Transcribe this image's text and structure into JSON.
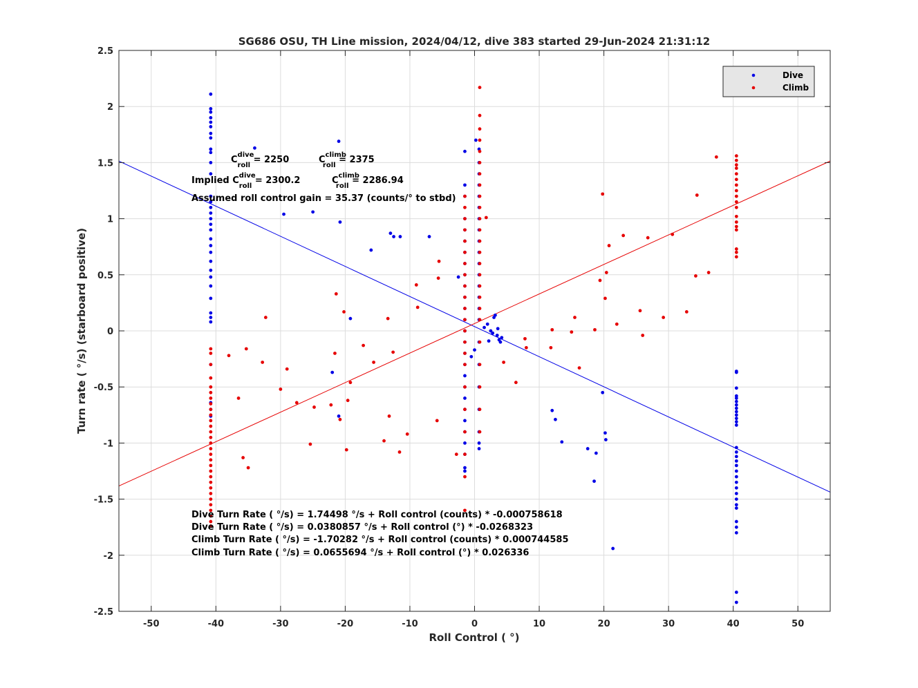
{
  "chart_data": {
    "type": "scatter",
    "title": "SG686 OSU, TH Line mission, 2024/04/12, dive 383 started 29-Jun-2024 21:31:12",
    "xlabel": "Roll Control ( °)",
    "ylabel": "Turn rate ( °/s) (starboard positive)",
    "xlim": [
      -55,
      55
    ],
    "ylim": [
      -2.5,
      2.5
    ],
    "xticks": [
      -50,
      -40,
      -30,
      -20,
      -10,
      0,
      10,
      20,
      30,
      40,
      50
    ],
    "yticks": [
      -2.5,
      -2,
      -1.5,
      -1,
      -0.5,
      0,
      0.5,
      1,
      1.5,
      2,
      2.5
    ],
    "grid": true,
    "legend_position": "top-right",
    "colors": {
      "dive": "#0000e6",
      "climb": "#e60000"
    },
    "series": [
      {
        "name": "Dive",
        "x": [
          -40.8,
          -40.8,
          -40.8,
          -40.8,
          -40.8,
          -40.8,
          -40.8,
          -40.8,
          -40.8,
          -40.8,
          -40.8,
          -40.8,
          -40.8,
          -40.8,
          -40.8,
          -40.8,
          -40.8,
          -40.8,
          -40.8,
          -40.8,
          -40.8,
          -40.8,
          -40.8,
          -40.8,
          -40.8,
          -40.8,
          -40.8,
          -40.8,
          -40.8,
          -40.8,
          -40.8,
          -40.8,
          -40.8,
          -40.8,
          -34,
          -29.5,
          -25,
          -21,
          -20.8,
          -19.2,
          -22,
          -21,
          -16,
          -13,
          -12.5,
          -11.5,
          -7,
          -2.5,
          -1.5,
          -1.5,
          -1.5,
          -1.5,
          -1.5,
          -1.5,
          -1.5,
          -1.5,
          -1.5,
          -1.5,
          -1.5,
          -1.5,
          -1.5,
          -1.5,
          -1.5,
          -1.5,
          -1.5,
          -1.5,
          -1.5,
          -1.5,
          -1.5,
          -1.5,
          -1.5,
          -1.5,
          -1.5,
          -1.5,
          -1.5,
          -0.5,
          0,
          0.2,
          0.7,
          0.7,
          0.7,
          0.7,
          0.7,
          0.7,
          0.7,
          0.7,
          0.7,
          0.7,
          0.7,
          0.7,
          0.7,
          0.7,
          0.7,
          0.7,
          0.7,
          0.7,
          0.7,
          0.7,
          0.7,
          0.7,
          0.7,
          1.5,
          2,
          2.5,
          3,
          3.2,
          3.5,
          3.8,
          4,
          4.2,
          2.8,
          2.2,
          3.6,
          12,
          12.5,
          13.5,
          17.5,
          18.8,
          18.5,
          19.8,
          20.2,
          20.3,
          21.4,
          40.5,
          40.5,
          40.5,
          40.5,
          40.5,
          40.5,
          40.5,
          40.5,
          40.5,
          40.5,
          40.5,
          40.5,
          40.5,
          40.5,
          40.5,
          40.5,
          40.5,
          40.5,
          40.5,
          40.5,
          40.5,
          40.5,
          40.5,
          40.5,
          40.5,
          40.5,
          40.5,
          40.5,
          40.5,
          40.5,
          40.5
        ],
        "y": [
          2.11,
          1.98,
          1.95,
          1.9,
          1.86,
          1.82,
          1.76,
          1.72,
          1.62,
          1.59,
          1.5,
          1.4,
          1.2,
          1.15,
          1.1,
          1.05,
          1.0,
          0.95,
          0.9,
          0.82,
          0.76,
          0.7,
          0.62,
          0.54,
          0.48,
          0.4,
          0.29,
          0.16,
          0.12,
          0.08,
          -0.3,
          -0.64,
          -0.7,
          -0.76,
          1.63,
          1.04,
          1.06,
          1.69,
          0.97,
          0.11,
          -0.37,
          -0.76,
          0.72,
          0.87,
          0.84,
          0.84,
          0.84,
          0.48,
          1.6,
          1.3,
          1.2,
          1.0,
          0.9,
          0.8,
          0.7,
          0.6,
          0.5,
          0.4,
          0.3,
          0.2,
          0.1,
          0.0,
          -0.1,
          -0.2,
          -0.3,
          -0.4,
          -0.5,
          -0.6,
          -0.7,
          -0.8,
          -0.9,
          -1.0,
          -1.1,
          -1.22,
          -1.25,
          -0.23,
          -0.17,
          1.7,
          1.62,
          1.5,
          1.4,
          1.3,
          1.2,
          1.1,
          1.0,
          0.9,
          0.8,
          0.7,
          0.6,
          0.5,
          0.4,
          0.3,
          0.2,
          0.1,
          -0.1,
          -0.3,
          -0.5,
          -0.7,
          -0.9,
          -1.0,
          -1.05,
          0.03,
          0.06,
          0.0,
          0.12,
          0.14,
          -0.04,
          -0.08,
          -0.1,
          -0.06,
          -0.02,
          -0.09,
          0.02,
          -0.71,
          -0.79,
          -0.99,
          -1.05,
          -1.09,
          -1.34,
          -0.55,
          -0.91,
          -0.97,
          -1.94,
          -0.36,
          -0.37,
          -0.51,
          -0.58,
          -0.6,
          -0.63,
          -0.66,
          -0.69,
          -0.72,
          -0.75,
          -0.78,
          -0.81,
          -0.84,
          -1.04,
          -1.08,
          -1.12,
          -1.16,
          -1.2,
          -1.25,
          -1.3,
          -1.35,
          -1.4,
          -1.45,
          -1.5,
          -1.55,
          -1.58,
          -1.7,
          -1.75,
          -1.8,
          -2.33,
          -2.42
        ]
      },
      {
        "name": "Climb",
        "x": [
          -40.8,
          -40.8,
          -40.8,
          -40.8,
          -40.8,
          -40.8,
          -40.8,
          -40.8,
          -40.8,
          -40.8,
          -40.8,
          -40.8,
          -40.8,
          -40.8,
          -40.8,
          -40.8,
          -40.8,
          -40.8,
          -40.8,
          -40.8,
          -40.8,
          -40.8,
          -40.8,
          -40.8,
          -40.8,
          -40.8,
          -40.8,
          -40.8,
          -40.8,
          -40.8,
          -38,
          -36.5,
          -35.8,
          -35.3,
          -35,
          -32.8,
          -32.3,
          -30,
          -29,
          -27.5,
          -25.4,
          -24.8,
          -22.2,
          -21.6,
          -21.4,
          -20.8,
          -20.2,
          -19.8,
          -19.6,
          -19.2,
          -17.2,
          -15.6,
          -14,
          -13.4,
          -13.2,
          -12.6,
          -11.6,
          -10.4,
          -9,
          -8.8,
          -5.8,
          -5.6,
          -5.5,
          -2.8,
          -1.5,
          -1.5,
          -1.5,
          -1.5,
          -1.5,
          -1.5,
          -1.5,
          -1.5,
          -1.5,
          -1.5,
          -1.5,
          -1.5,
          -1.5,
          -1.5,
          -1.5,
          -1.5,
          -1.5,
          -1.5,
          -1.5,
          -1.5,
          -1.5,
          -1.5,
          0.8,
          0.8,
          0.8,
          0.8,
          0.8,
          0.8,
          0.8,
          0.8,
          0.8,
          0.8,
          0.8,
          0.8,
          0.8,
          0.8,
          0.8,
          0.8,
          0.8,
          0.8,
          0.8,
          0.8,
          0.8,
          0.8,
          0.8,
          0.8,
          0.8,
          1.8,
          4.5,
          6.4,
          7.8,
          8,
          11.8,
          12,
          15,
          15.5,
          16.2,
          18.6,
          19.4,
          19.8,
          20.2,
          20.4,
          20.8,
          22,
          23,
          25.6,
          26,
          26.8,
          29.2,
          30.6,
          32.8,
          34.2,
          34.4,
          36.2,
          37.4,
          40.5,
          40.5,
          40.5,
          40.5,
          40.5,
          40.5,
          40.5,
          40.5,
          40.5,
          40.5,
          40.5,
          40.5,
          40.5,
          40.5,
          40.5,
          40.5,
          40.5,
          40.5
        ],
        "y": [
          -0.16,
          -0.2,
          -0.3,
          -0.42,
          -0.6,
          -0.65,
          -0.7,
          -0.75,
          -0.8,
          -0.85,
          -0.9,
          -0.95,
          -1.0,
          -1.05,
          -1.1,
          -1.15,
          -1.2,
          -1.25,
          -1.3,
          -1.35,
          -1.4,
          -1.45,
          -1.5,
          -1.55,
          -1.6,
          -1.65,
          -1.7,
          -1.74,
          -0.5,
          -0.55,
          -0.22,
          -0.6,
          -1.13,
          -0.16,
          -1.22,
          -0.28,
          0.12,
          -0.52,
          -0.34,
          -0.64,
          -1.01,
          -0.68,
          -0.66,
          -0.2,
          0.33,
          -0.79,
          0.17,
          -1.06,
          -0.62,
          -0.46,
          -0.13,
          -0.28,
          -0.98,
          0.11,
          -0.76,
          -0.19,
          -1.08,
          -0.92,
          0.41,
          0.21,
          -0.8,
          0.47,
          0.62,
          -1.1,
          1.2,
          1.1,
          1.0,
          0.9,
          0.8,
          0.7,
          0.6,
          0.5,
          0.4,
          0.3,
          0.2,
          0.1,
          0.0,
          -0.1,
          -0.2,
          -0.3,
          -0.5,
          -0.7,
          -0.9,
          -1.1,
          -1.3,
          -1.6,
          2.17,
          1.92,
          1.8,
          1.7,
          1.6,
          1.5,
          1.4,
          1.3,
          1.2,
          1.1,
          1.0,
          0.9,
          0.8,
          0.7,
          0.6,
          0.5,
          0.4,
          0.3,
          0.2,
          0.1,
          -0.1,
          -0.3,
          -0.5,
          -0.7,
          -0.9,
          1.01,
          -0.28,
          -0.46,
          -0.07,
          -0.15,
          -0.15,
          0.01,
          -0.01,
          0.12,
          -0.33,
          0.01,
          0.45,
          1.22,
          0.29,
          0.52,
          0.76,
          0.06,
          0.85,
          0.18,
          -0.04,
          0.83,
          0.12,
          0.86,
          0.17,
          0.49,
          1.21,
          0.52,
          1.55,
          1.56,
          1.52,
          1.48,
          1.45,
          1.4,
          1.35,
          1.3,
          1.25,
          1.2,
          1.15,
          1.1,
          1.02,
          0.97,
          0.93,
          0.9,
          0.73,
          0.7,
          0.66
        ]
      }
    ],
    "fit_lines": [
      {
        "name": "Dive fit",
        "color": "#0000e6",
        "intercept": 0.0380857,
        "slope": -0.0268323
      },
      {
        "name": "Climb fit",
        "color": "#e60000",
        "intercept": 0.0655694,
        "slope": 0.026336
      }
    ],
    "annotations": {
      "c_dive_label": "C",
      "c_dive_sup": "dive",
      "c_dive_sub": "roll",
      "c_dive_value": " = 2250",
      "c_climb_label": "C",
      "c_climb_sup": "climb",
      "c_climb_sub": "roll",
      "c_climb_value": " = 2375",
      "implied_label": "Implied C",
      "implied_dive_sup": "dive",
      "implied_dive_sub": "roll",
      "implied_dive_value": " = 2300.2",
      "implied_climb_label": "C",
      "implied_climb_sup": "climb",
      "implied_climb_sub": "roll",
      "implied_climb_value": " = 2286.94",
      "gain": "Assumed roll control gain = 35.37 (counts/° to stbd)",
      "eq1": "Dive Turn Rate ( °/s) = 1.74498 °/s + Roll control (counts) * -0.000758618",
      "eq2": "Dive Turn Rate ( °/s) = 0.0380857  °/s + Roll control (°) * -0.0268323",
      "eq3": "Climb Turn Rate ( °/s) = -1.70282 °/s + Roll control (counts) * 0.000744585",
      "eq4": "Climb Turn Rate ( °/s) = 0.0655694 °/s + Roll control (°) * 0.026336"
    }
  }
}
